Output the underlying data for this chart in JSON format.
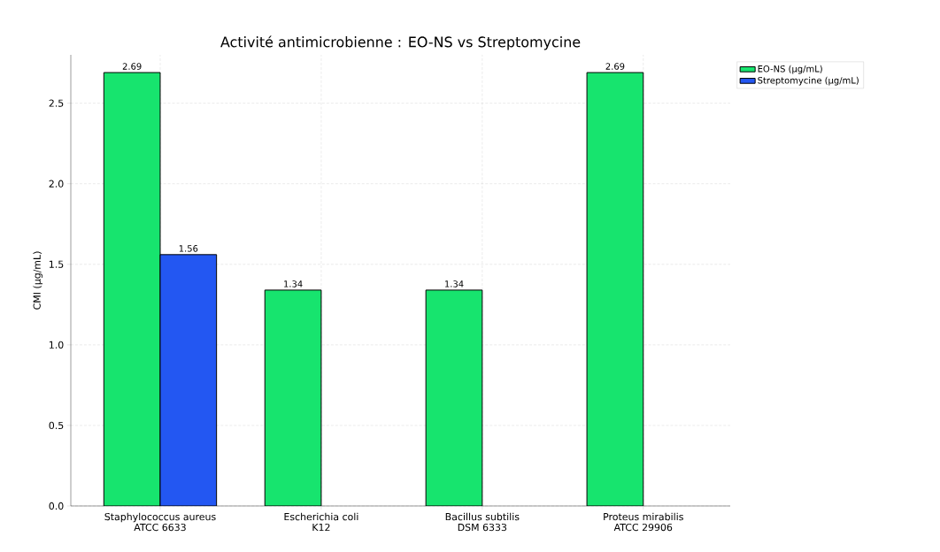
{
  "chart_data": {
    "type": "bar",
    "title": "Activité antimicrobienne : EO-NS vs Streptomycine",
    "ylabel": "CMI (µg/mL)",
    "categories": [
      "Staphylococcus aureus\nATCC 6633",
      "Escherichia coli\nK12",
      "Bacillus subtilis\nDSM 6333",
      "Proteus mirabilis\nATCC 29906"
    ],
    "series": [
      {
        "name": "EO-NS (µg/mL)",
        "color": "#17e46e",
        "values": [
          2.69,
          1.34,
          1.34,
          2.69
        ]
      },
      {
        "name": "Streptomycine (µg/mL)",
        "color": "#2357f2",
        "values": [
          1.56,
          null,
          null,
          null
        ]
      }
    ],
    "ylim": [
      0,
      2.8
    ],
    "yticks": [
      {
        "value": 0,
        "label": "0.0"
      },
      {
        "value": 0.5,
        "label": "0.5"
      },
      {
        "value": 1,
        "label": "1.0"
      },
      {
        "value": 1.5,
        "label": "1.5"
      },
      {
        "value": 2,
        "label": "2.0"
      },
      {
        "value": 2.5,
        "label": "2.5"
      }
    ],
    "data_labels": true,
    "grid": true,
    "legend": "top right"
  }
}
